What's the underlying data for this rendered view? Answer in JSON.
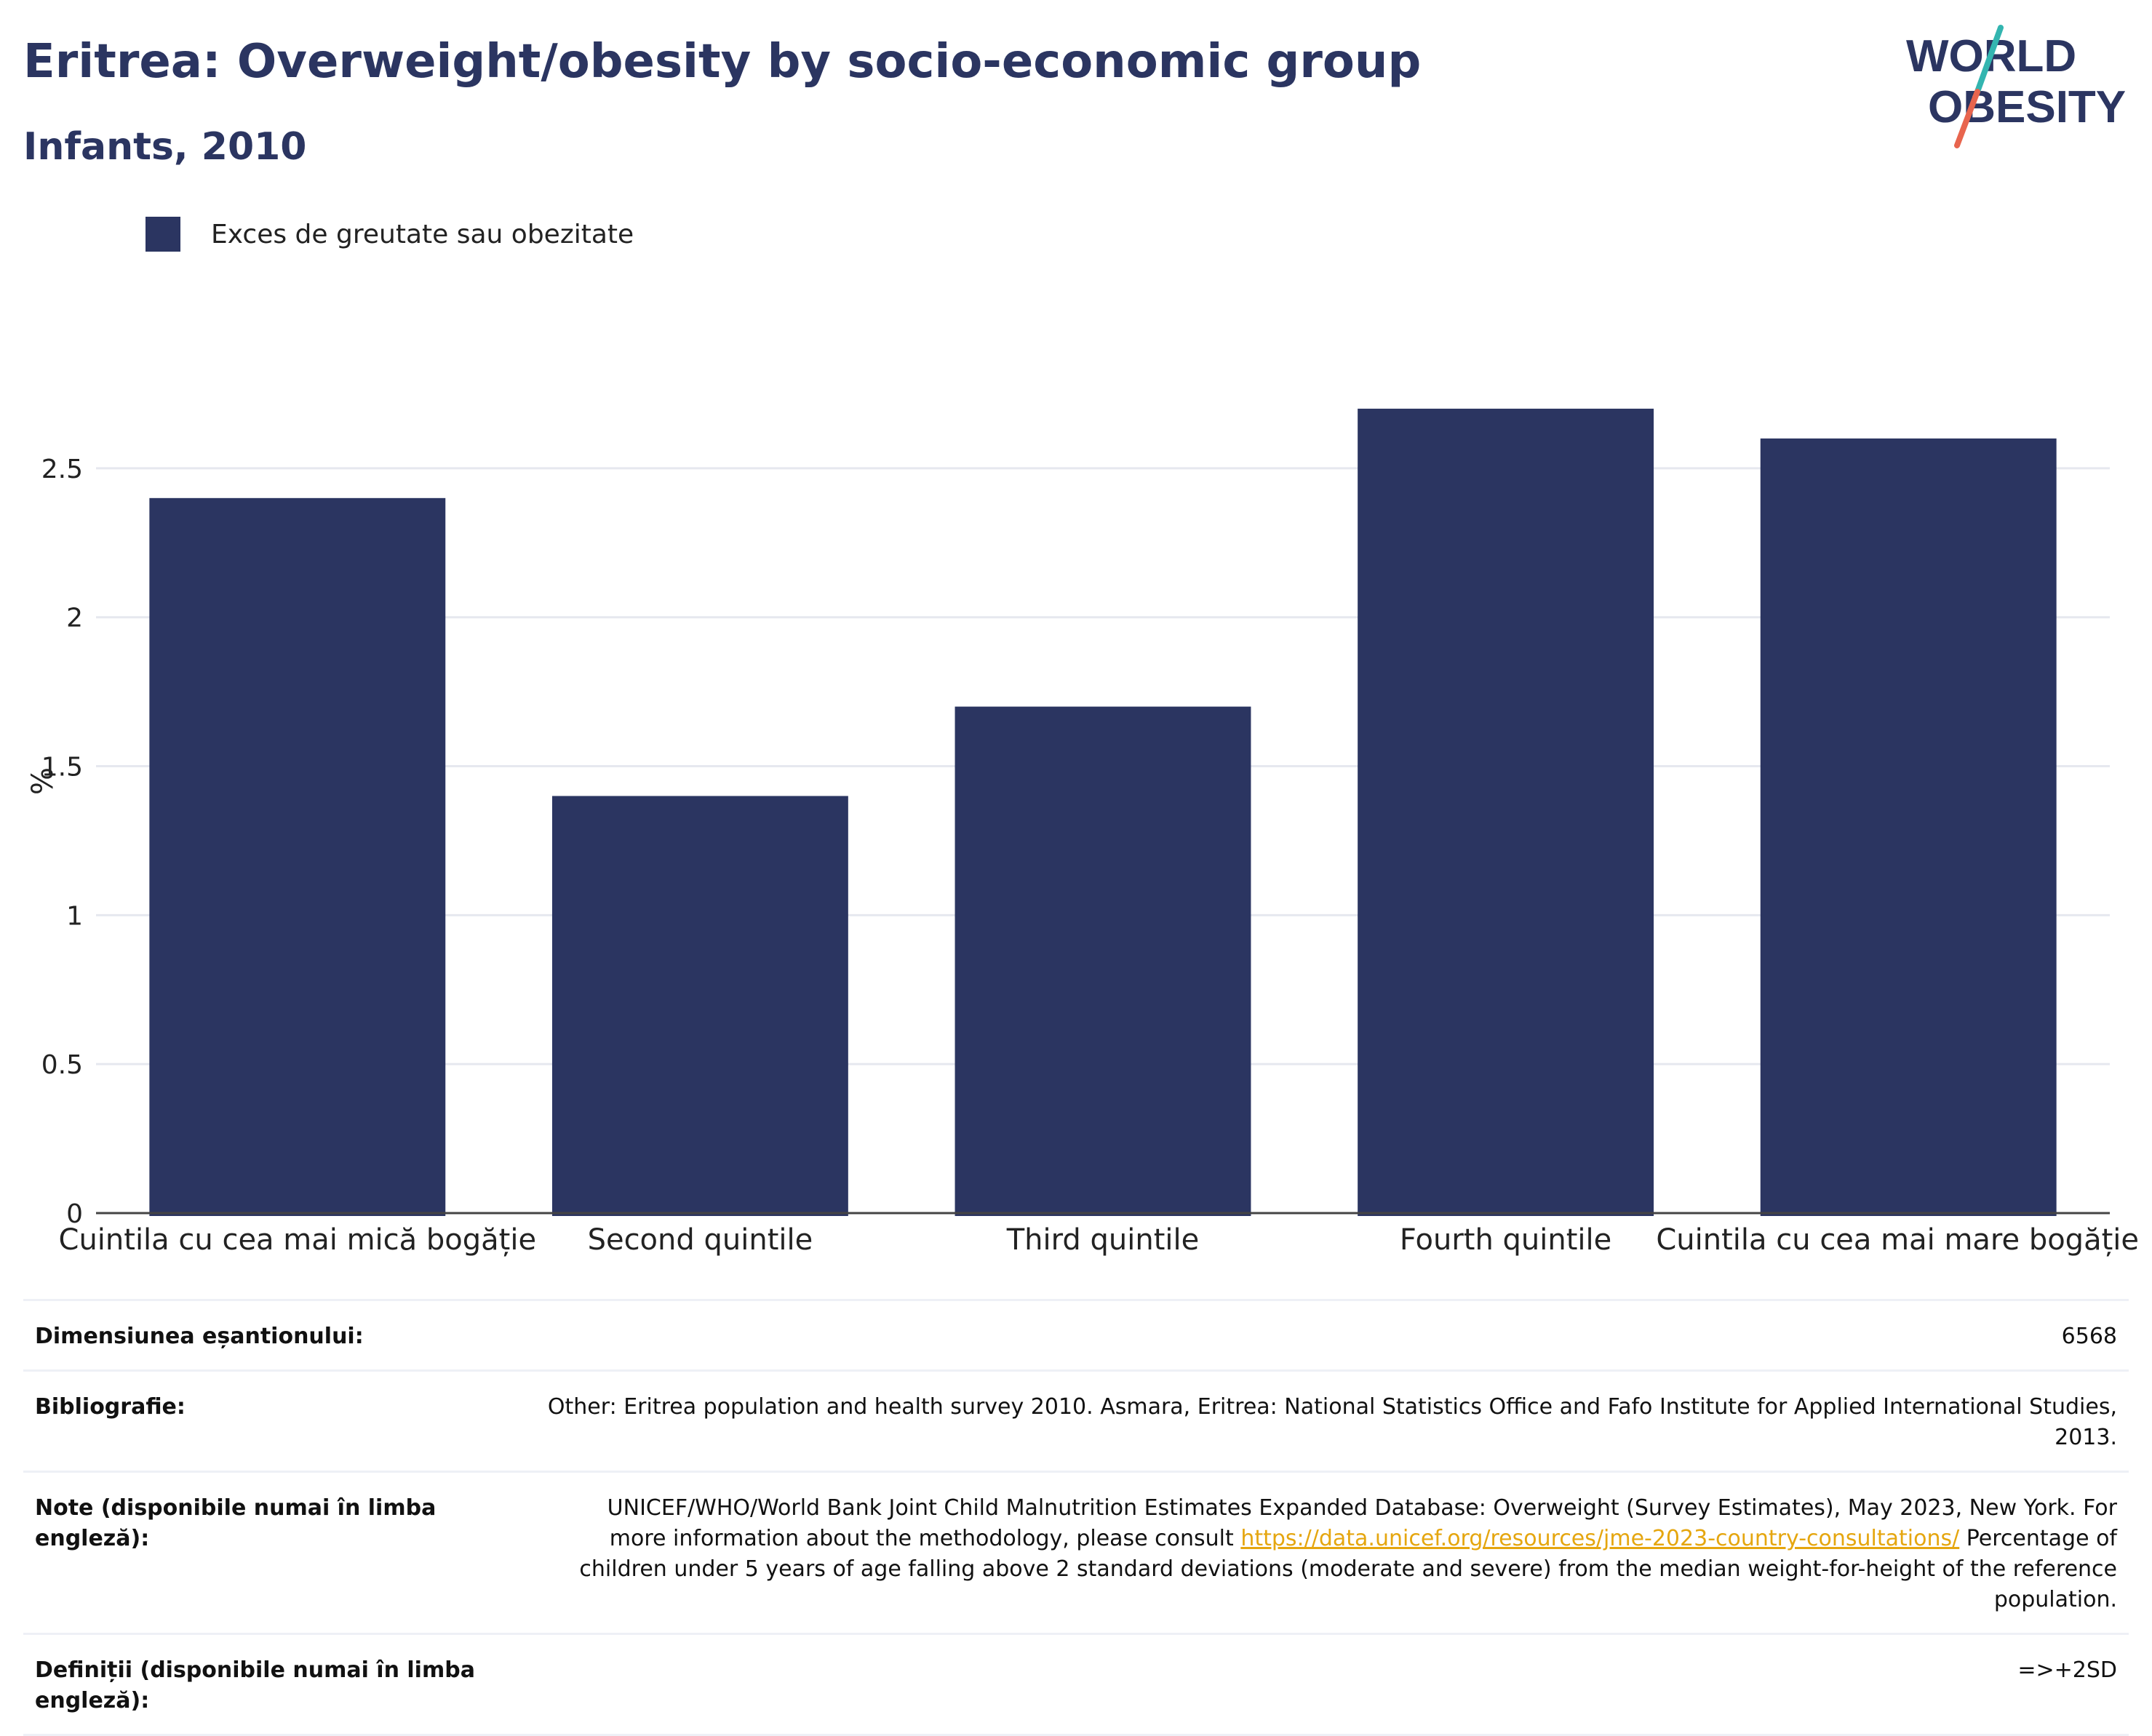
{
  "header": {
    "title": "Eritrea: Overweight/obesity by socio-economic group",
    "subtitle": "Infants, 2010"
  },
  "logo": {
    "line1": "WORLD",
    "line2": "OBESITY",
    "colors": {
      "text": "#2b3561",
      "teal": "#33b5b0",
      "coral": "#e8654e"
    }
  },
  "chart_data": {
    "type": "bar",
    "categories": [
      "Cuintila cu cea mai mică bogăție",
      "Second quintile",
      "Third quintile",
      "Fourth quintile",
      "Cuintila cu cea mai mare bogăție"
    ],
    "series": [
      {
        "name": "Exces de greutate sau obezitate",
        "values": [
          2.4,
          1.4,
          1.7,
          2.7,
          2.6
        ],
        "color": "#2b3561"
      }
    ],
    "ylabel": "%",
    "xlabel": "",
    "ylim": [
      0,
      2.9
    ],
    "yticks": [
      0,
      0.5,
      1,
      1.5,
      2,
      2.5
    ],
    "ytick_labels": [
      "0",
      "0.5",
      "1",
      "1.5",
      "2",
      "2.5"
    ],
    "grid": true,
    "legend_position": "top-left"
  },
  "meta": {
    "sample_size": {
      "label": "Dimensiunea eșantionului:",
      "value": "6568"
    },
    "bibliography": {
      "label": "Bibliografie:",
      "value": "Other: Eritrea population and health survey 2010. Asmara, Eritrea: National Statistics Office and Fafo Institute for Applied International Studies, 2013."
    },
    "notes": {
      "label": "Note (disponibile numai în limba engleză):",
      "text_before": "UNICEF/WHO/World Bank Joint Child Malnutrition Estimates Expanded Database: Overweight (Survey Estimates), May 2023, New York. For more information about the methodology, please consult ",
      "link": "https://data.unicef.org/resources/jme-2023-country-consultations/",
      "text_after": " Percentage of children under 5 years of age falling above 2 standard deviations (moderate and severe) from the median weight-for-height of the reference population."
    },
    "definitions": {
      "label": "Definiții (disponibile numai în limba engleză):",
      "value": "=>+2SD"
    }
  }
}
